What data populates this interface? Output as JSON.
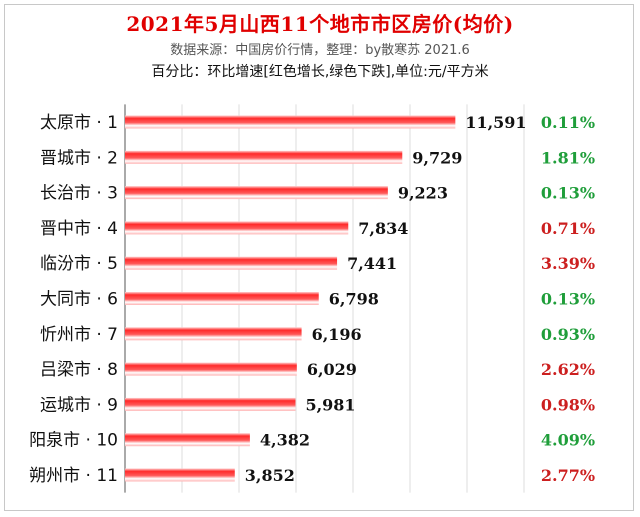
{
  "header": {
    "title": "2021年5月山西11个地市市区房价(均价)",
    "subtitle": "数据来源：中国房价行情，整理：by散寒苏 2021.6",
    "note": "百分比：环比增速[红色增长,绿色下跌],单位:元/平方米"
  },
  "colors": {
    "bar_red": "#e00000",
    "increase": "#cc1f1f",
    "decrease": "#1f9e3a",
    "title": "#e00000"
  },
  "chart_data": {
    "type": "bar",
    "orientation": "horizontal",
    "categories": [
      "太原市 · 1",
      "晋城市 · 2",
      "长治市 · 3",
      "晋中市 · 4",
      "临汾市 · 5",
      "大同市 · 6",
      "忻州市 · 7",
      "吕梁市 · 8",
      "运城市 · 9",
      "阳泉市 · 10",
      "朔州市 · 11"
    ],
    "values": [
      11591,
      9729,
      9223,
      7834,
      7441,
      6798,
      6196,
      6029,
      5981,
      4382,
      3852
    ],
    "value_labels": [
      "11,591",
      "9,729",
      "9,223",
      "7,834",
      "7,441",
      "6,798",
      "6,196",
      "6,029",
      "5,981",
      "4,382",
      "3,852"
    ],
    "mom_change": [
      {
        "text": "0.11%",
        "direction": "down"
      },
      {
        "text": "1.81%",
        "direction": "down"
      },
      {
        "text": "0.13%",
        "direction": "down"
      },
      {
        "text": "0.71%",
        "direction": "up"
      },
      {
        "text": "3.39%",
        "direction": "up"
      },
      {
        "text": "0.13%",
        "direction": "down"
      },
      {
        "text": "0.93%",
        "direction": "down"
      },
      {
        "text": "2.62%",
        "direction": "up"
      },
      {
        "text": "0.98%",
        "direction": "up"
      },
      {
        "text": "4.09%",
        "direction": "down"
      },
      {
        "text": "2.77%",
        "direction": "up"
      }
    ],
    "xlim": [
      0,
      14000
    ],
    "grid": true,
    "legend": "none"
  }
}
